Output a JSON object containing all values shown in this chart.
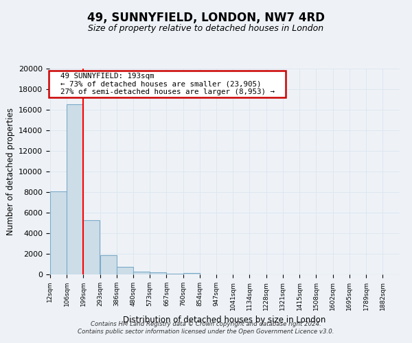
{
  "title": "49, SUNNYFIELD, LONDON, NW7 4RD",
  "subtitle": "Size of property relative to detached houses in London",
  "xlabel": "Distribution of detached houses by size in London",
  "ylabel": "Number of detached properties",
  "bar_labels": [
    "12sqm",
    "106sqm",
    "199sqm",
    "293sqm",
    "386sqm",
    "480sqm",
    "573sqm",
    "667sqm",
    "760sqm",
    "854sqm",
    "947sqm",
    "1041sqm",
    "1134sqm",
    "1228sqm",
    "1321sqm",
    "1415sqm",
    "1508sqm",
    "1602sqm",
    "1695sqm",
    "1789sqm",
    "1882sqm"
  ],
  "bar_values": [
    8100,
    16500,
    5300,
    1850,
    750,
    280,
    175,
    100,
    130,
    0,
    0,
    0,
    0,
    0,
    0,
    0,
    0,
    0,
    0,
    0,
    0
  ],
  "bar_color": "#ccdde8",
  "bar_edge_color": "#7baac8",
  "annotation_text_line1": "49 SUNNYFIELD: 193sqm",
  "annotation_text_line2": "← 73% of detached houses are smaller (23,905)",
  "annotation_text_line3": "27% of semi-detached houses are larger (8,953) →",
  "annotation_box_color": "#ffffff",
  "annotation_border_color": "#cc0000",
  "ylim": [
    0,
    20000
  ],
  "yticks": [
    0,
    2000,
    4000,
    6000,
    8000,
    10000,
    12000,
    14000,
    16000,
    18000,
    20000
  ],
  "footer_line1": "Contains HM Land Registry data © Crown copyright and database right 2024.",
  "footer_line2": "Contains public sector information licensed under the Open Government Licence v3.0.",
  "background_color": "#eef2f7",
  "grid_color": "#dde6ef",
  "red_line_x": 199,
  "x_edges": [
    12,
    106,
    199,
    293,
    386,
    480,
    573,
    667,
    760,
    854,
    947,
    1041,
    1134,
    1228,
    1321,
    1415,
    1508,
    1602,
    1695,
    1789,
    1882
  ],
  "bin_width": 93
}
